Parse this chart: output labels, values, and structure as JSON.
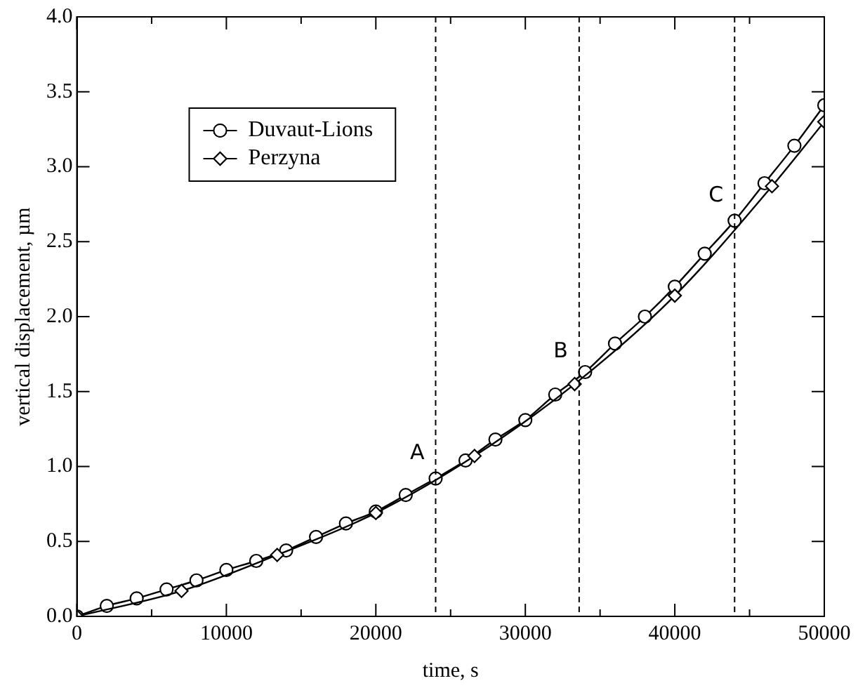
{
  "chart_data": {
    "type": "line",
    "xlabel": "time, s",
    "ylabel": "vertical displacement, µm",
    "xlim": [
      0,
      50000
    ],
    "ylim": [
      0,
      4
    ],
    "xticks": [
      0,
      {
        "value": 5000,
        "label": null
      },
      10000,
      {
        "value": 15000,
        "label": null
      },
      20000,
      {
        "value": 25000,
        "label": null
      },
      30000,
      {
        "value": 35000,
        "label": null
      },
      40000,
      {
        "value": 45000,
        "label": null
      },
      50000
    ],
    "yticks": [
      {
        "value": 0,
        "label": "0.0"
      },
      0.5,
      {
        "value": 1,
        "label": "1.0"
      },
      1.5,
      {
        "value": 2,
        "label": "2.0"
      },
      2.5,
      {
        "value": 3,
        "label": "3.0"
      },
      3.5,
      {
        "value": 4,
        "label": "4.0"
      }
    ],
    "legend": "top left",
    "line_style": "solid",
    "series": [
      {
        "name": "Duvaut-Lions",
        "color": "#000000",
        "marker": "circle",
        "x": [
          0,
          2000,
          4000,
          6000,
          8000,
          10000,
          12000,
          14000,
          16000,
          18000,
          20000,
          22000,
          24000,
          26000,
          28000,
          30000,
          32000,
          34000,
          36000,
          38000,
          40000,
          42000,
          44000,
          46000,
          48000,
          50000
        ],
        "values": [
          0,
          0.07,
          0.12,
          0.18,
          0.24,
          0.31,
          0.37,
          0.44,
          0.53,
          0.62,
          0.7,
          0.81,
          0.92,
          1.04,
          1.18,
          1.31,
          1.48,
          1.63,
          1.82,
          2.0,
          2.2,
          2.42,
          2.64,
          2.89,
          3.14,
          3.41
        ]
      },
      {
        "name": "Perzyna",
        "color": "#000000",
        "marker": "diamond",
        "x": [
          0,
          7000,
          13400,
          20000,
          26600,
          33300,
          40000,
          46500,
          50000
        ],
        "values": [
          0,
          0.17,
          0.41,
          0.69,
          1.07,
          1.55,
          2.14,
          2.87,
          3.3
        ]
      }
    ],
    "ref_lines": [
      {
        "axis": "x",
        "value": 24000,
        "label": "A",
        "line_style": "dashed",
        "color": "#000000"
      },
      {
        "axis": "x",
        "value": 33600,
        "label": "B",
        "line_style": "dashed",
        "color": "#000000"
      },
      {
        "axis": "x",
        "value": 44000,
        "label": "C",
        "line_style": "dashed",
        "color": "#000000"
      }
    ]
  }
}
